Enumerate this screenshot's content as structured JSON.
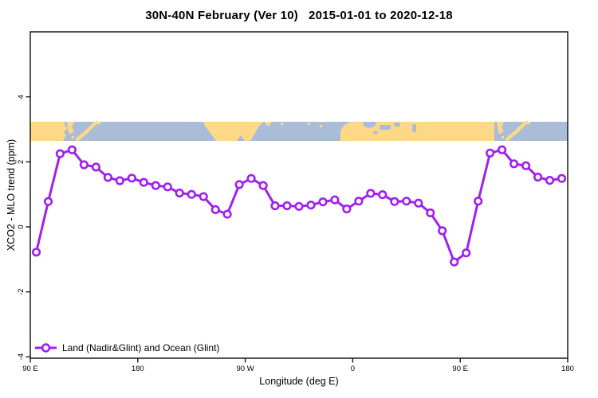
{
  "title": "30N-40N February (Ver 10)   2015-01-01 to 2020-12-18",
  "xlabel": "Longitude (deg E)",
  "ylabel": "XCO2 - MLO trend (ppm)",
  "legend": {
    "label": "Land (Nadir&Glint) and Ocean (Glint)"
  },
  "chart_data": {
    "type": "line",
    "title": "30N-40N February (Ver 10)   2015-01-01 to 2020-12-18",
    "xlabel": "Longitude (deg E)",
    "ylabel": "XCO2 - MLO trend (ppm)",
    "legend_position": "bottom-left",
    "grid": false,
    "xlim_axis_deg": [
      90,
      540
    ],
    "ylim": [
      -4,
      6
    ],
    "x_ticks": [
      {
        "label": "90 E",
        "deg": 90
      },
      {
        "label": "180",
        "deg": 180
      },
      {
        "label": "90 W",
        "deg": 270
      },
      {
        "label": "0",
        "deg": 360
      },
      {
        "label": "90 E",
        "deg": 450
      },
      {
        "label": "180",
        "deg": 540
      }
    ],
    "y_ticks": [
      {
        "label": "-4",
        "value": -4
      },
      {
        "label": "-2",
        "value": -2
      },
      {
        "label": "0",
        "value": 0
      },
      {
        "label": "2",
        "value": 2
      },
      {
        "label": "4",
        "value": 4
      }
    ],
    "series": [
      {
        "name": "Land (Nadir&Glint) and Ocean (Glint)",
        "marker": "open-circle",
        "x_axis_deg": [
          95,
          105,
          115,
          125,
          135,
          145,
          155,
          165,
          175,
          185,
          195,
          205,
          215,
          225,
          235,
          245,
          255,
          265,
          275,
          285,
          295,
          305,
          315,
          325,
          335,
          345,
          355,
          365,
          375,
          385,
          395,
          405,
          415,
          425,
          435,
          445,
          455,
          465,
          475,
          485,
          495,
          505,
          515,
          525,
          535
        ],
        "values": [
          -0.78,
          0.78,
          2.25,
          2.37,
          1.91,
          1.84,
          1.52,
          1.42,
          1.5,
          1.37,
          1.27,
          1.23,
          1.04,
          1.0,
          0.93,
          0.53,
          0.39,
          1.3,
          1.49,
          1.27,
          0.65,
          0.65,
          0.63,
          0.67,
          0.77,
          0.83,
          0.55,
          0.79,
          1.03,
          0.99,
          0.78,
          0.79,
          0.73,
          0.43,
          -0.12,
          -1.08,
          -0.8,
          0.79,
          2.27,
          2.37,
          1.94,
          1.88,
          1.53,
          1.43,
          1.49
        ]
      }
    ],
    "map_band": {
      "value_top": 3.2,
      "value_bottom": 2.65
    },
    "colors": {
      "line": "#a020f0",
      "marker_fill": "#ffffff",
      "land": "#fdd987",
      "ocean": "#a9bcd8",
      "axis": "#1a1a1a"
    }
  }
}
